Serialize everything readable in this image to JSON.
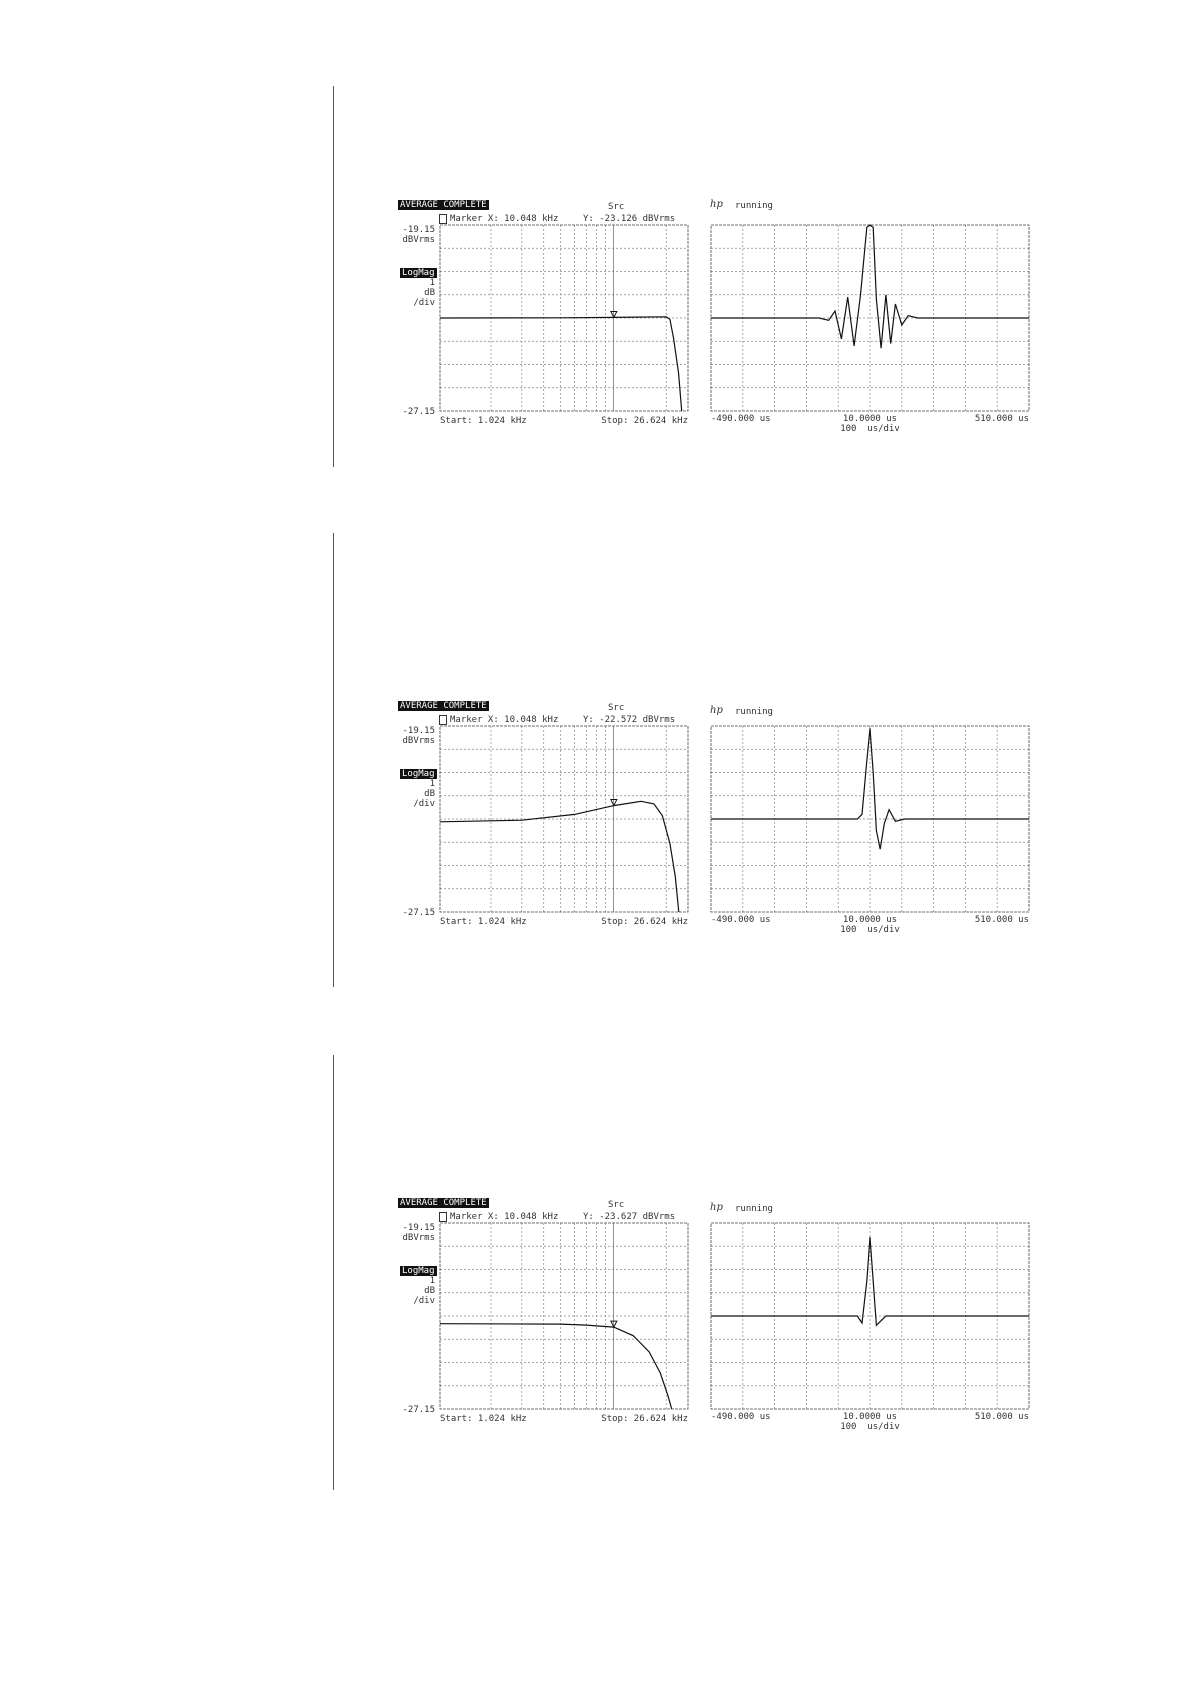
{
  "chart_data": [
    {
      "type": "line",
      "status_label": "AVERAGE COMPLETE",
      "source_label": "Src",
      "marker_label": "Marker X: 10.048 kHz",
      "marker_y_label": "Y: -23.126 dBVrms",
      "marker": {
        "x_khz": 10.048,
        "y_dbvrms": -23.126
      },
      "y_top_label": "-19.15",
      "y_unit_label": "dBVrms",
      "format_label": "LogMag",
      "scale_labels": [
        "1",
        "dB",
        "/div"
      ],
      "y_bottom_label": "-27.15",
      "x_start_label": "Start: 1.024 kHz",
      "x_stop_label": "Stop: 26.624 kHz",
      "xscale": "log",
      "xlim": [
        1.024,
        26.624
      ],
      "ylim": [
        -27.15,
        -19.15
      ],
      "grid": true,
      "points": [
        [
          1.024,
          -23.15
        ],
        [
          5,
          -23.14
        ],
        [
          10.048,
          -23.126
        ],
        [
          20,
          -23.1
        ],
        [
          21,
          -23.2
        ],
        [
          22,
          -24.0
        ],
        [
          23.5,
          -25.5
        ],
        [
          24.5,
          -27.15
        ]
      ]
    },
    {
      "type": "line",
      "status_label": "running",
      "x_left_label": "-490.000 us",
      "x_center_label": "10.0000 us",
      "x_right_label": "510.000 us",
      "x_scale_label": "100  us/div",
      "xlim": [
        -490,
        510
      ],
      "ylim_div": [
        -4,
        4
      ],
      "grid": true,
      "points": [
        [
          -490,
          0
        ],
        [
          -150,
          0
        ],
        [
          -120,
          -0.1
        ],
        [
          -100,
          0.3
        ],
        [
          -80,
          -0.9
        ],
        [
          -60,
          0.9
        ],
        [
          -40,
          -1.2
        ],
        [
          -20,
          1.0
        ],
        [
          0,
          3.9
        ],
        [
          10,
          4.0
        ],
        [
          20,
          3.9
        ],
        [
          30,
          0.8
        ],
        [
          45,
          -1.3
        ],
        [
          60,
          1.0
        ],
        [
          75,
          -1.1
        ],
        [
          90,
          0.6
        ],
        [
          110,
          -0.3
        ],
        [
          130,
          0.1
        ],
        [
          160,
          0
        ],
        [
          510,
          0
        ]
      ]
    },
    {
      "type": "line",
      "status_label": "AVERAGE COMPLETE",
      "source_label": "Src",
      "marker_label": "Marker X: 10.048 kHz",
      "marker_y_label": "Y: -22.572 dBVrms",
      "marker": {
        "x_khz": 10.048,
        "y_dbvrms": -22.572
      },
      "y_top_label": "-19.15",
      "y_unit_label": "dBVrms",
      "format_label": "LogMag",
      "scale_labels": [
        "1",
        "dB",
        "/div"
      ],
      "y_bottom_label": "-27.15",
      "x_start_label": "Start: 1.024 kHz",
      "x_stop_label": "Stop: 26.624 kHz",
      "xscale": "log",
      "xlim": [
        1.024,
        26.624
      ],
      "ylim": [
        -27.15,
        -19.15
      ],
      "grid": true,
      "points": [
        [
          1.024,
          -23.27
        ],
        [
          3,
          -23.2
        ],
        [
          6,
          -22.95
        ],
        [
          10.048,
          -22.572
        ],
        [
          14.4,
          -22.39
        ],
        [
          17,
          -22.5
        ],
        [
          19,
          -23.0
        ],
        [
          21,
          -24.2
        ],
        [
          22.5,
          -25.6
        ],
        [
          23.6,
          -27.15
        ]
      ]
    },
    {
      "type": "line",
      "status_label": "running",
      "x_left_label": "-490.000 us",
      "x_center_label": "10.0000 us",
      "x_right_label": "510.000 us",
      "x_scale_label": "100  us/div",
      "xlim": [
        -490,
        510
      ],
      "ylim_div": [
        -4,
        4
      ],
      "grid": true,
      "points": [
        [
          -490,
          0
        ],
        [
          -30,
          0
        ],
        [
          -15,
          0.2
        ],
        [
          0,
          2.5
        ],
        [
          10,
          3.9
        ],
        [
          20,
          2.0
        ],
        [
          30,
          -0.5
        ],
        [
          42,
          -1.3
        ],
        [
          55,
          -0.2
        ],
        [
          70,
          0.4
        ],
        [
          90,
          -0.1
        ],
        [
          120,
          0
        ],
        [
          510,
          0
        ]
      ]
    },
    {
      "type": "line",
      "status_label": "AVERAGE COMPLETE",
      "source_label": "Src",
      "marker_label": "Marker X: 10.048 kHz",
      "marker_y_label": "Y: -23.627 dBVrms",
      "marker": {
        "x_khz": 10.048,
        "y_dbvrms": -23.627
      },
      "y_top_label": "-19.15",
      "y_unit_label": "dBVrms",
      "format_label": "LogMag",
      "scale_labels": [
        "1",
        "dB",
        "/div"
      ],
      "y_bottom_label": "-27.15",
      "x_start_label": "Start: 1.024 kHz",
      "x_stop_label": "Stop: 26.624 kHz",
      "xscale": "log",
      "xlim": [
        1.024,
        26.624
      ],
      "ylim": [
        -27.15,
        -19.15
      ],
      "grid": true,
      "points": [
        [
          1.024,
          -23.48
        ],
        [
          5,
          -23.5
        ],
        [
          7,
          -23.54
        ],
        [
          10.048,
          -23.627
        ],
        [
          13,
          -24.0
        ],
        [
          16,
          -24.7
        ],
        [
          18.5,
          -25.6
        ],
        [
          20.5,
          -26.6
        ],
        [
          21.5,
          -27.15
        ]
      ]
    },
    {
      "type": "line",
      "status_label": "running",
      "x_left_label": "-490.000 us",
      "x_center_label": "10.0000 us",
      "x_right_label": "510.000 us",
      "x_scale_label": "100  us/div",
      "xlim": [
        -490,
        510
      ],
      "ylim_div": [
        -4,
        4
      ],
      "grid": true,
      "points": [
        [
          -490,
          0
        ],
        [
          -30,
          0
        ],
        [
          -15,
          -0.3
        ],
        [
          0,
          1.5
        ],
        [
          10,
          3.4
        ],
        [
          20,
          1.5
        ],
        [
          30,
          -0.4
        ],
        [
          45,
          -0.2
        ],
        [
          60,
          0
        ],
        [
          510,
          0
        ]
      ]
    }
  ]
}
